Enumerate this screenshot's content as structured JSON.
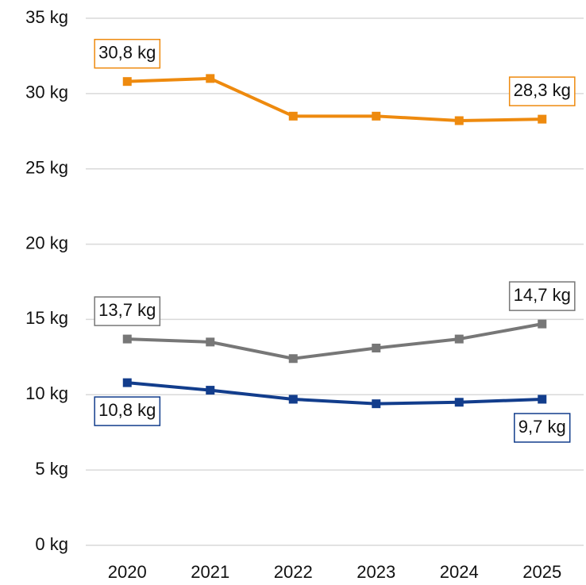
{
  "chart_data": {
    "type": "line",
    "categories": [
      "2020",
      "2021",
      "2022",
      "2023",
      "2024",
      "2025"
    ],
    "series": [
      {
        "color": "#ee8a0e",
        "values": [
          30.8,
          31.0,
          28.5,
          28.5,
          28.2,
          28.3
        ],
        "value_labels": [
          "30,8 kg",
          null,
          null,
          null,
          null,
          "28,3 kg"
        ]
      },
      {
        "color": "#777777",
        "values": [
          13.7,
          13.5,
          12.4,
          13.1,
          13.7,
          14.7
        ],
        "value_labels": [
          "13,7 kg",
          null,
          null,
          null,
          null,
          "14,7 kg"
        ]
      },
      {
        "color": "#123d8c",
        "values": [
          10.8,
          10.3,
          9.7,
          9.4,
          9.5,
          9.7
        ],
        "value_labels": [
          "10,8 kg",
          null,
          null,
          null,
          null,
          "9,7 kg"
        ]
      }
    ],
    "ylim": [
      0,
      35
    ],
    "yticks": [
      {
        "value": 0,
        "label": "0 kg"
      },
      {
        "value": 5,
        "label": "5 kg"
      },
      {
        "value": 10,
        "label": "10 kg"
      },
      {
        "value": 15,
        "label": "15 kg"
      },
      {
        "value": 20,
        "label": "20 kg"
      },
      {
        "value": 25,
        "label": "25 kg"
      },
      {
        "value": 30,
        "label": "30 kg"
      },
      {
        "value": 35,
        "label": "35 kg"
      }
    ],
    "grid": true
  }
}
